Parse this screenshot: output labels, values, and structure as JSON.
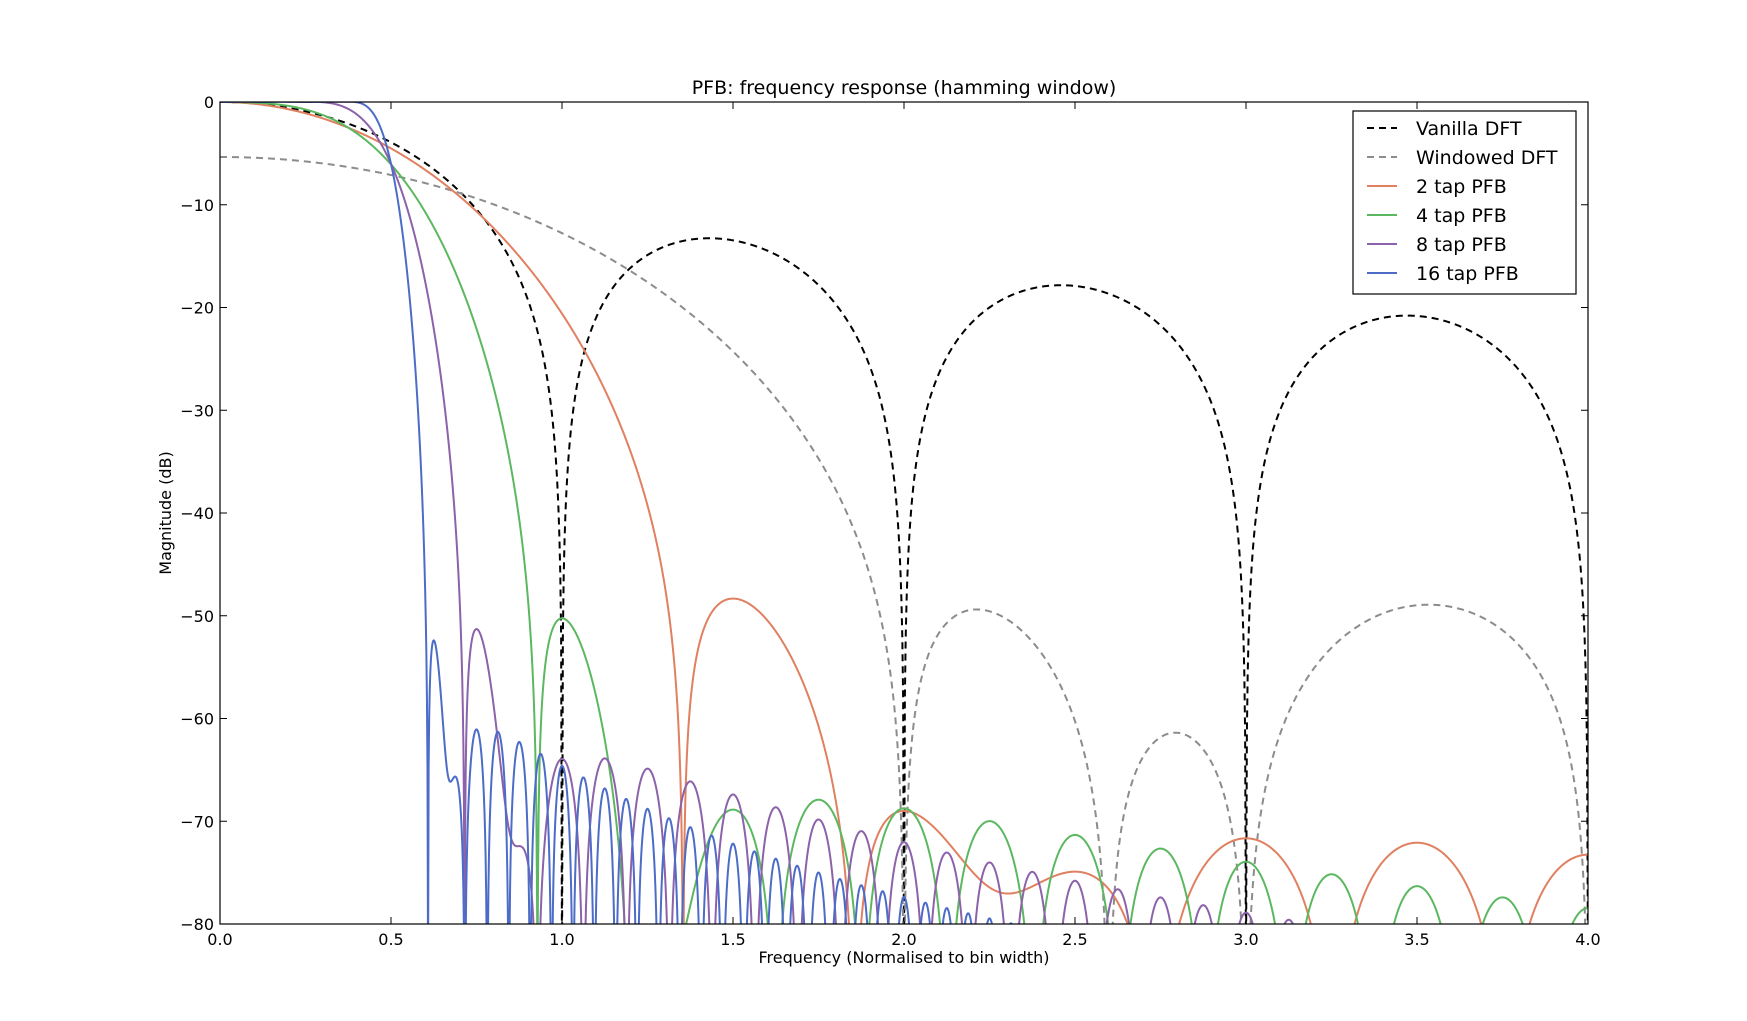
{
  "chart_data": {
    "type": "line",
    "title": "PFB: frequency response (hamming window)",
    "xlabel": "Frequency (Normalised to bin width)",
    "ylabel": "Magnitude (dB)",
    "xlim": [
      0.0,
      4.0
    ],
    "ylim": [
      -80,
      0
    ],
    "xticks": [
      "0.0",
      "0.5",
      "1.0",
      "1.5",
      "2.0",
      "2.5",
      "3.0",
      "3.5",
      "4.0"
    ],
    "yticks": [
      "0",
      "−10",
      "−20",
      "−30",
      "−40",
      "−50",
      "−60",
      "−70",
      "−80"
    ],
    "grid": false,
    "legend_position": "top-right",
    "series": [
      {
        "name": "Vanilla DFT",
        "color": "#000000",
        "style": "dashed",
        "model": {
          "kind": "sinc"
        }
      },
      {
        "name": "Windowed DFT",
        "color": "#8c8c8c",
        "style": "dashed",
        "model": {
          "kind": "hamming_dft"
        }
      },
      {
        "name": "2 tap PFB",
        "color": "#e08060",
        "style": "solid",
        "model": {
          "kind": "pfb",
          "taps": 2
        }
      },
      {
        "name": "4 tap PFB",
        "color": "#5cb860",
        "style": "solid",
        "model": {
          "kind": "pfb",
          "taps": 4
        }
      },
      {
        "name": "8 tap PFB",
        "color": "#8c62aa",
        "style": "solid",
        "model": {
          "kind": "pfb",
          "taps": 8
        }
      },
      {
        "name": "16 tap PFB",
        "color": "#4c6cc8",
        "style": "solid",
        "model": {
          "kind": "pfb",
          "taps": 16
        }
      }
    ]
  }
}
